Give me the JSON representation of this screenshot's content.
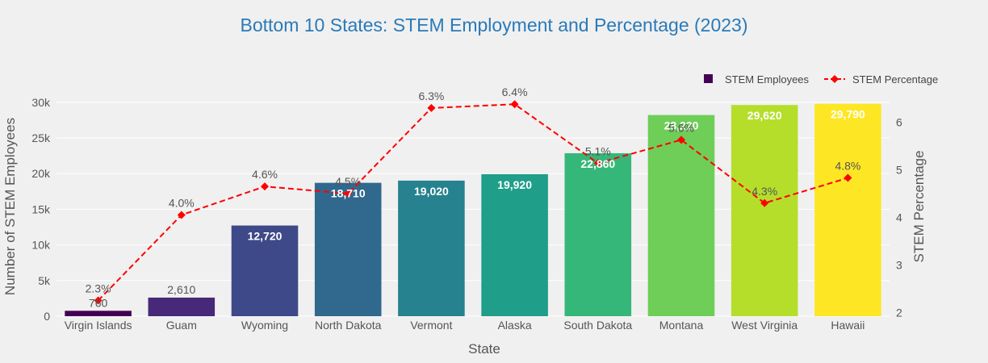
{
  "chart_data": {
    "type": "bar",
    "title": "Bottom 10 States: STEM Employment and Percentage (2023)",
    "xlabel": "State",
    "ylabel": "Number of STEM Employees",
    "y2label": "STEM Percentage",
    "categories": [
      "Virgin Islands",
      "Guam",
      "Wyoming",
      "North Dakota",
      "Vermont",
      "Alaska",
      "South Dakota",
      "Montana",
      "West Virginia",
      "Hawaii"
    ],
    "series": [
      {
        "name": "STEM Employees",
        "type": "bar",
        "axis": "left",
        "values": [
          760,
          2610,
          12720,
          18710,
          19020,
          19920,
          22860,
          28220,
          29620,
          29790
        ],
        "labels": [
          "760",
          "2,610",
          "12,720",
          "18,710",
          "19,020",
          "19,920",
          "22,860",
          "28,220",
          "29,620",
          "29,790"
        ],
        "colors": [
          "#440154",
          "#482878",
          "#3e4989",
          "#31688e",
          "#26828e",
          "#1f9e89",
          "#35b779",
          "#6ece58",
          "#b5de2b",
          "#fde725"
        ]
      },
      {
        "name": "STEM Percentage",
        "type": "line",
        "axis": "right",
        "values": [
          2.25,
          4.05,
          4.65,
          4.5,
          6.3,
          6.38,
          5.14,
          5.63,
          4.3,
          4.83
        ],
        "labels": [
          "2.3%",
          "4.0%",
          "4.6%",
          "4.5%",
          "6.3%",
          "6.4%",
          "5.1%",
          "5.6%",
          "4.3%",
          "4.8%"
        ],
        "color": "#ff0000"
      }
    ],
    "ylim": [
      0,
      31000
    ],
    "y_ticks": [
      0,
      5000,
      10000,
      15000,
      20000,
      25000,
      30000
    ],
    "y_tick_labels": [
      "0",
      "5k",
      "10k",
      "15k",
      "20k",
      "25k",
      "30k"
    ],
    "y2lim": [
      1.92,
      6.57
    ],
    "y2_ticks": [
      2,
      3,
      4,
      5,
      6
    ],
    "y2_tick_labels": [
      "2",
      "3",
      "4",
      "5",
      "6"
    ],
    "legend": "top-right",
    "grid": true
  }
}
